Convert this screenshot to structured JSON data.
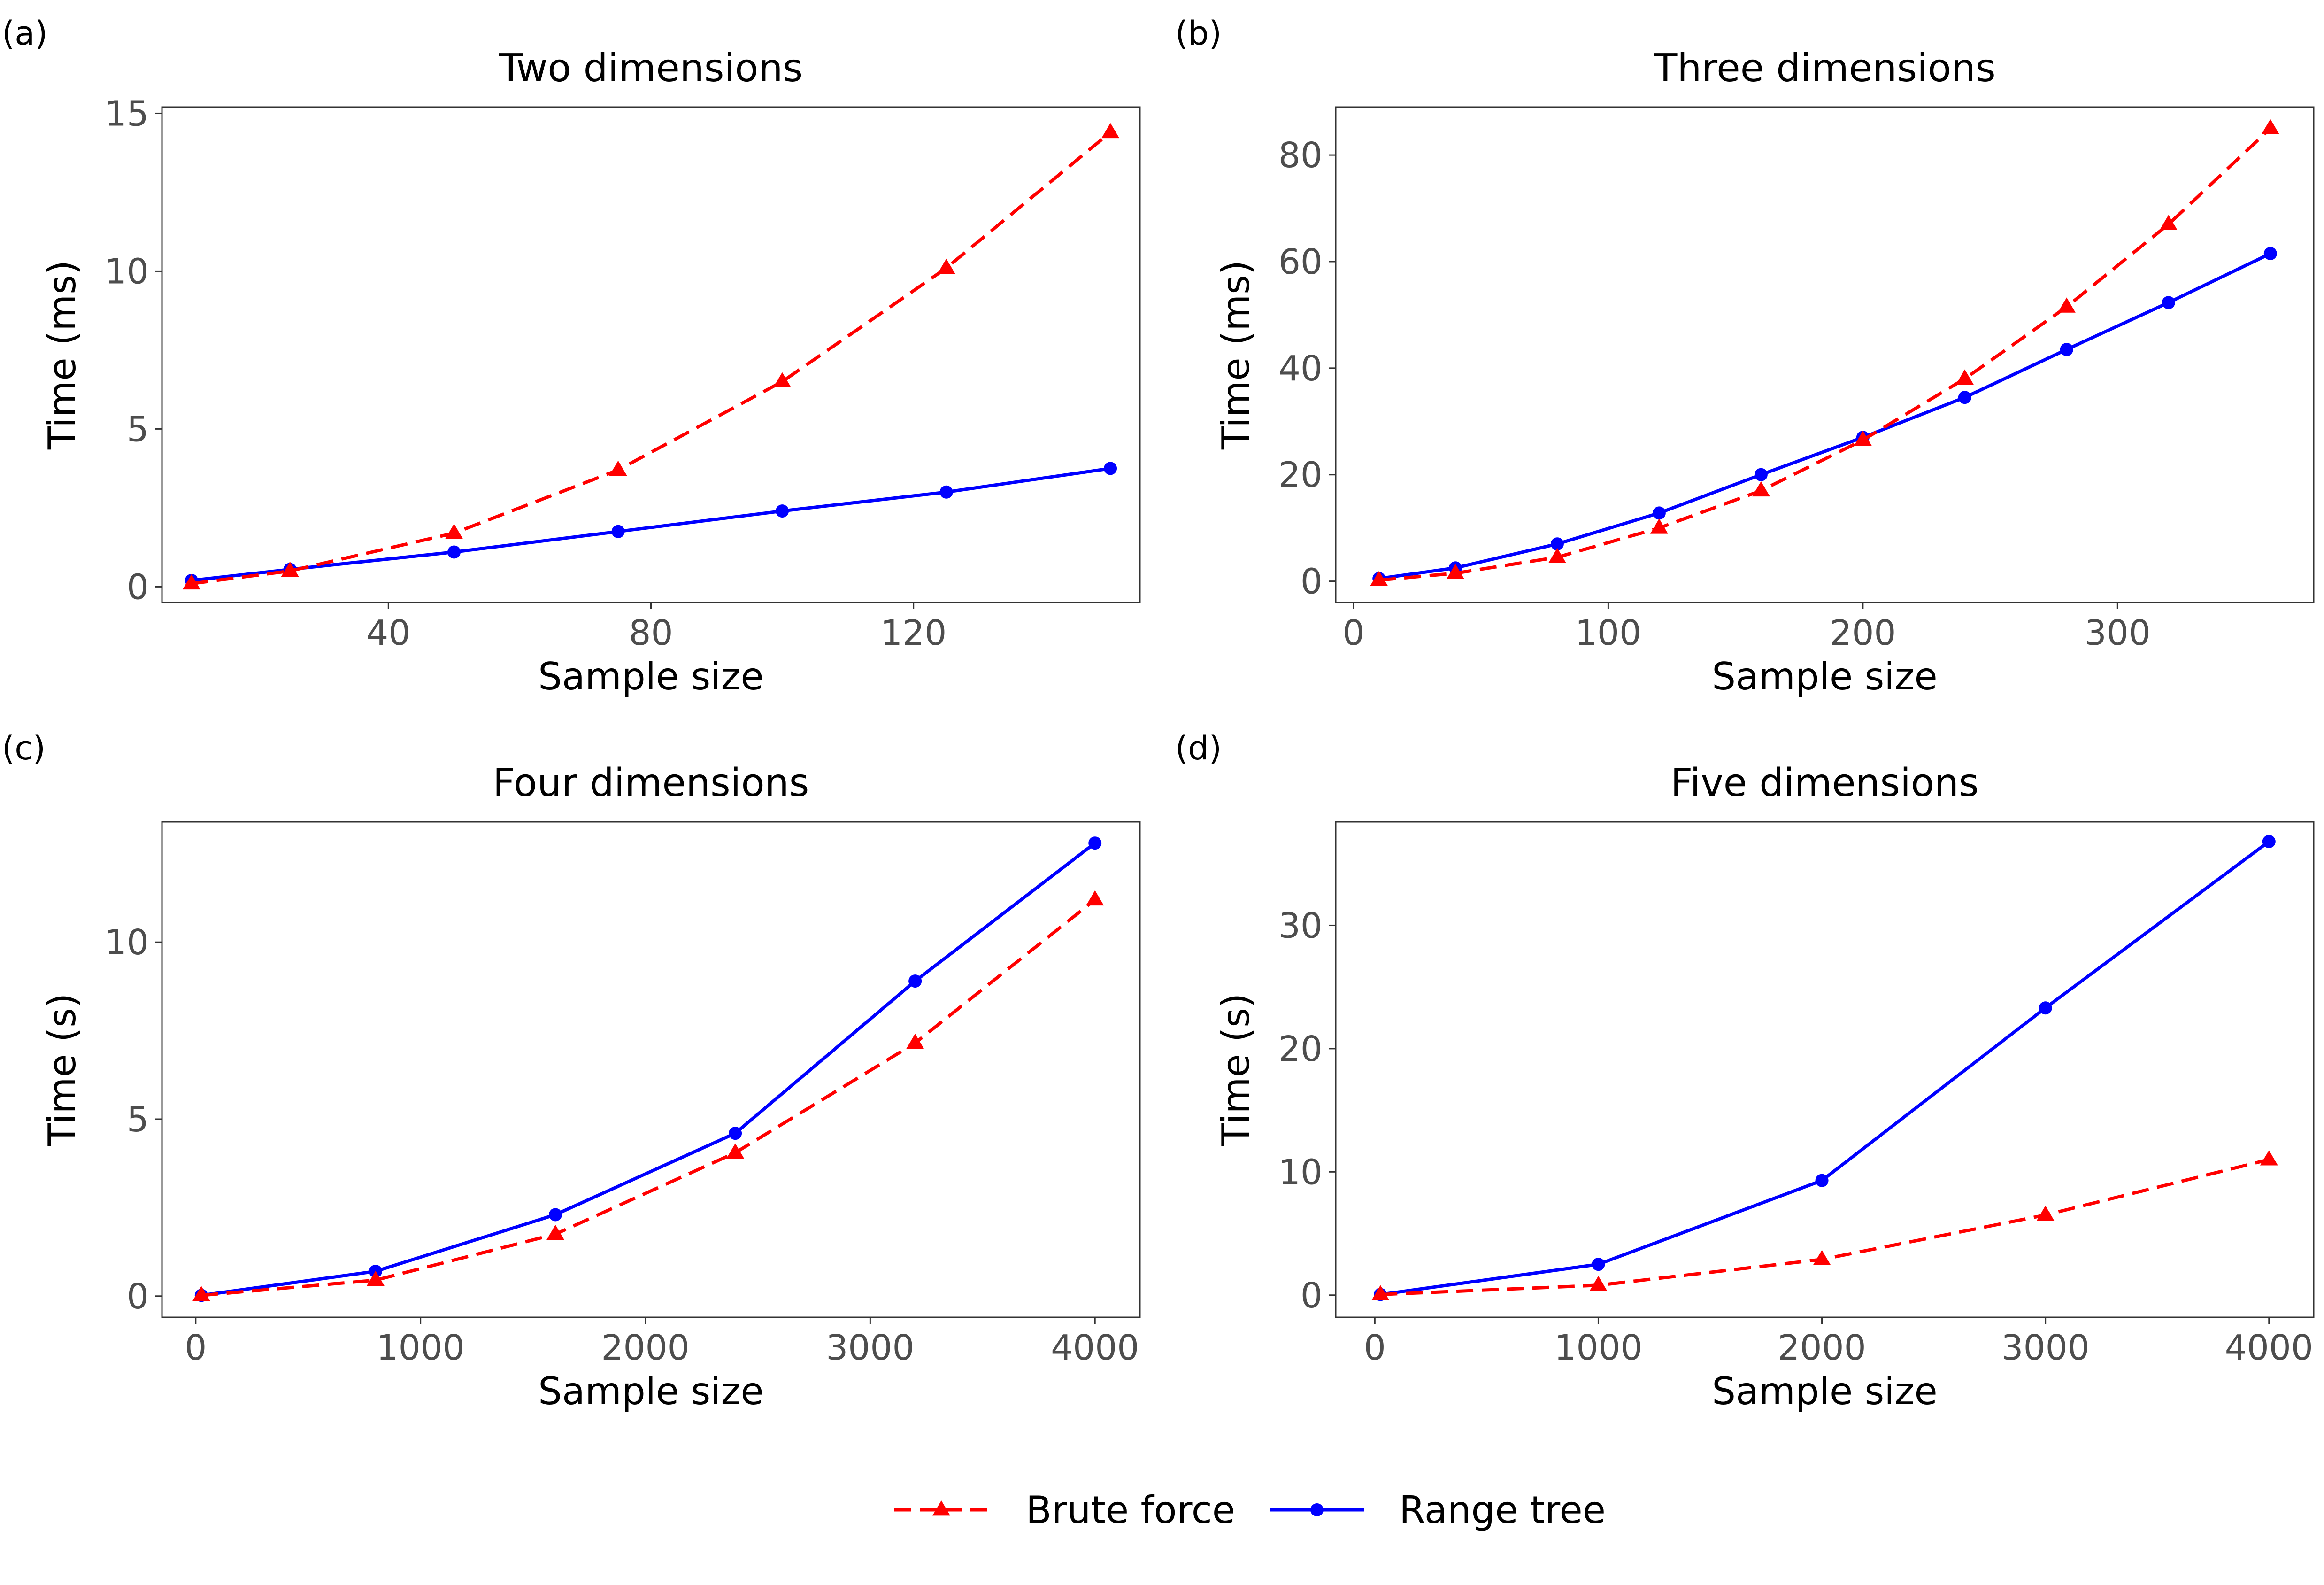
{
  "colors": {
    "brute": "#ff0000",
    "range": "#0000ff",
    "axis": "#333333",
    "tick_label": "#4d4d4d",
    "text": "#000000"
  },
  "legend": {
    "position": "bottom-center",
    "entries": [
      {
        "label": "Brute force",
        "color": "#ff0000",
        "dash": "dashed",
        "marker": "triangle"
      },
      {
        "label": "Range tree",
        "color": "#0000ff",
        "dash": "solid",
        "marker": "circle"
      }
    ]
  },
  "chart_data": [
    {
      "tag": "(a)",
      "type": "line",
      "title": "Two dimensions",
      "xlabel": "Sample size",
      "ylabel": "Time (ms)",
      "xlim": [
        5.5,
        154.5
      ],
      "ylim": [
        -0.5,
        15.2
      ],
      "xticks": [
        40,
        80,
        120
      ],
      "yticks": [
        0,
        5,
        10,
        15
      ],
      "x": [
        10,
        25,
        50,
        75,
        100,
        125,
        150
      ],
      "series": [
        {
          "name": "Brute force",
          "values": [
            0.1,
            0.5,
            1.7,
            3.7,
            6.5,
            10.1,
            14.4
          ]
        },
        {
          "name": "Range tree",
          "values": [
            0.2,
            0.55,
            1.1,
            1.75,
            2.4,
            3.0,
            3.75
          ]
        }
      ]
    },
    {
      "tag": "(b)",
      "type": "line",
      "title": "Three dimensions",
      "xlabel": "Sample size",
      "ylabel": "Time (ms)",
      "xlim": [
        -7,
        377
      ],
      "ylim": [
        -4,
        89
      ],
      "xticks": [
        0,
        100,
        200,
        300
      ],
      "yticks": [
        0,
        20,
        40,
        60,
        80
      ],
      "x": [
        10,
        40,
        80,
        120,
        160,
        200,
        240,
        280,
        320,
        360
      ],
      "series": [
        {
          "name": "Brute force",
          "values": [
            0.2,
            1.5,
            4.5,
            10,
            17,
            26.5,
            38,
            51.5,
            67,
            85
          ]
        },
        {
          "name": "Range tree",
          "values": [
            0.5,
            2.5,
            7,
            12.8,
            20,
            27,
            34.5,
            43.5,
            52.3,
            61.5
          ]
        }
      ]
    },
    {
      "tag": "(c)",
      "type": "line",
      "title": "Four dimensions",
      "xlabel": "Sample size",
      "ylabel": "Time (s)",
      "xlim": [
        -150,
        4200
      ],
      "ylim": [
        -0.6,
        13.4
      ],
      "xticks": [
        0,
        1000,
        2000,
        3000,
        4000
      ],
      "yticks": [
        0,
        5,
        10
      ],
      "x": [
        25,
        800,
        1600,
        2400,
        3200,
        4000
      ],
      "series": [
        {
          "name": "Brute force",
          "values": [
            0.02,
            0.45,
            1.75,
            4.05,
            7.15,
            11.2
          ]
        },
        {
          "name": "Range tree",
          "values": [
            0.02,
            0.7,
            2.3,
            4.6,
            8.9,
            12.8
          ]
        }
      ]
    },
    {
      "tag": "(d)",
      "type": "line",
      "title": "Five dimensions",
      "xlabel": "Sample size",
      "ylabel": "Time (s)",
      "xlim": [
        -175,
        4200
      ],
      "ylim": [
        -1.8,
        38.4
      ],
      "xticks": [
        0,
        1000,
        2000,
        3000,
        4000
      ],
      "yticks": [
        0,
        10,
        20,
        30
      ],
      "x": [
        25,
        1000,
        2000,
        3000,
        4000
      ],
      "series": [
        {
          "name": "Brute force",
          "values": [
            0.05,
            0.8,
            2.9,
            6.5,
            11.0
          ]
        },
        {
          "name": "Range tree",
          "values": [
            0.05,
            2.5,
            9.3,
            23.3,
            36.8
          ]
        }
      ]
    }
  ]
}
